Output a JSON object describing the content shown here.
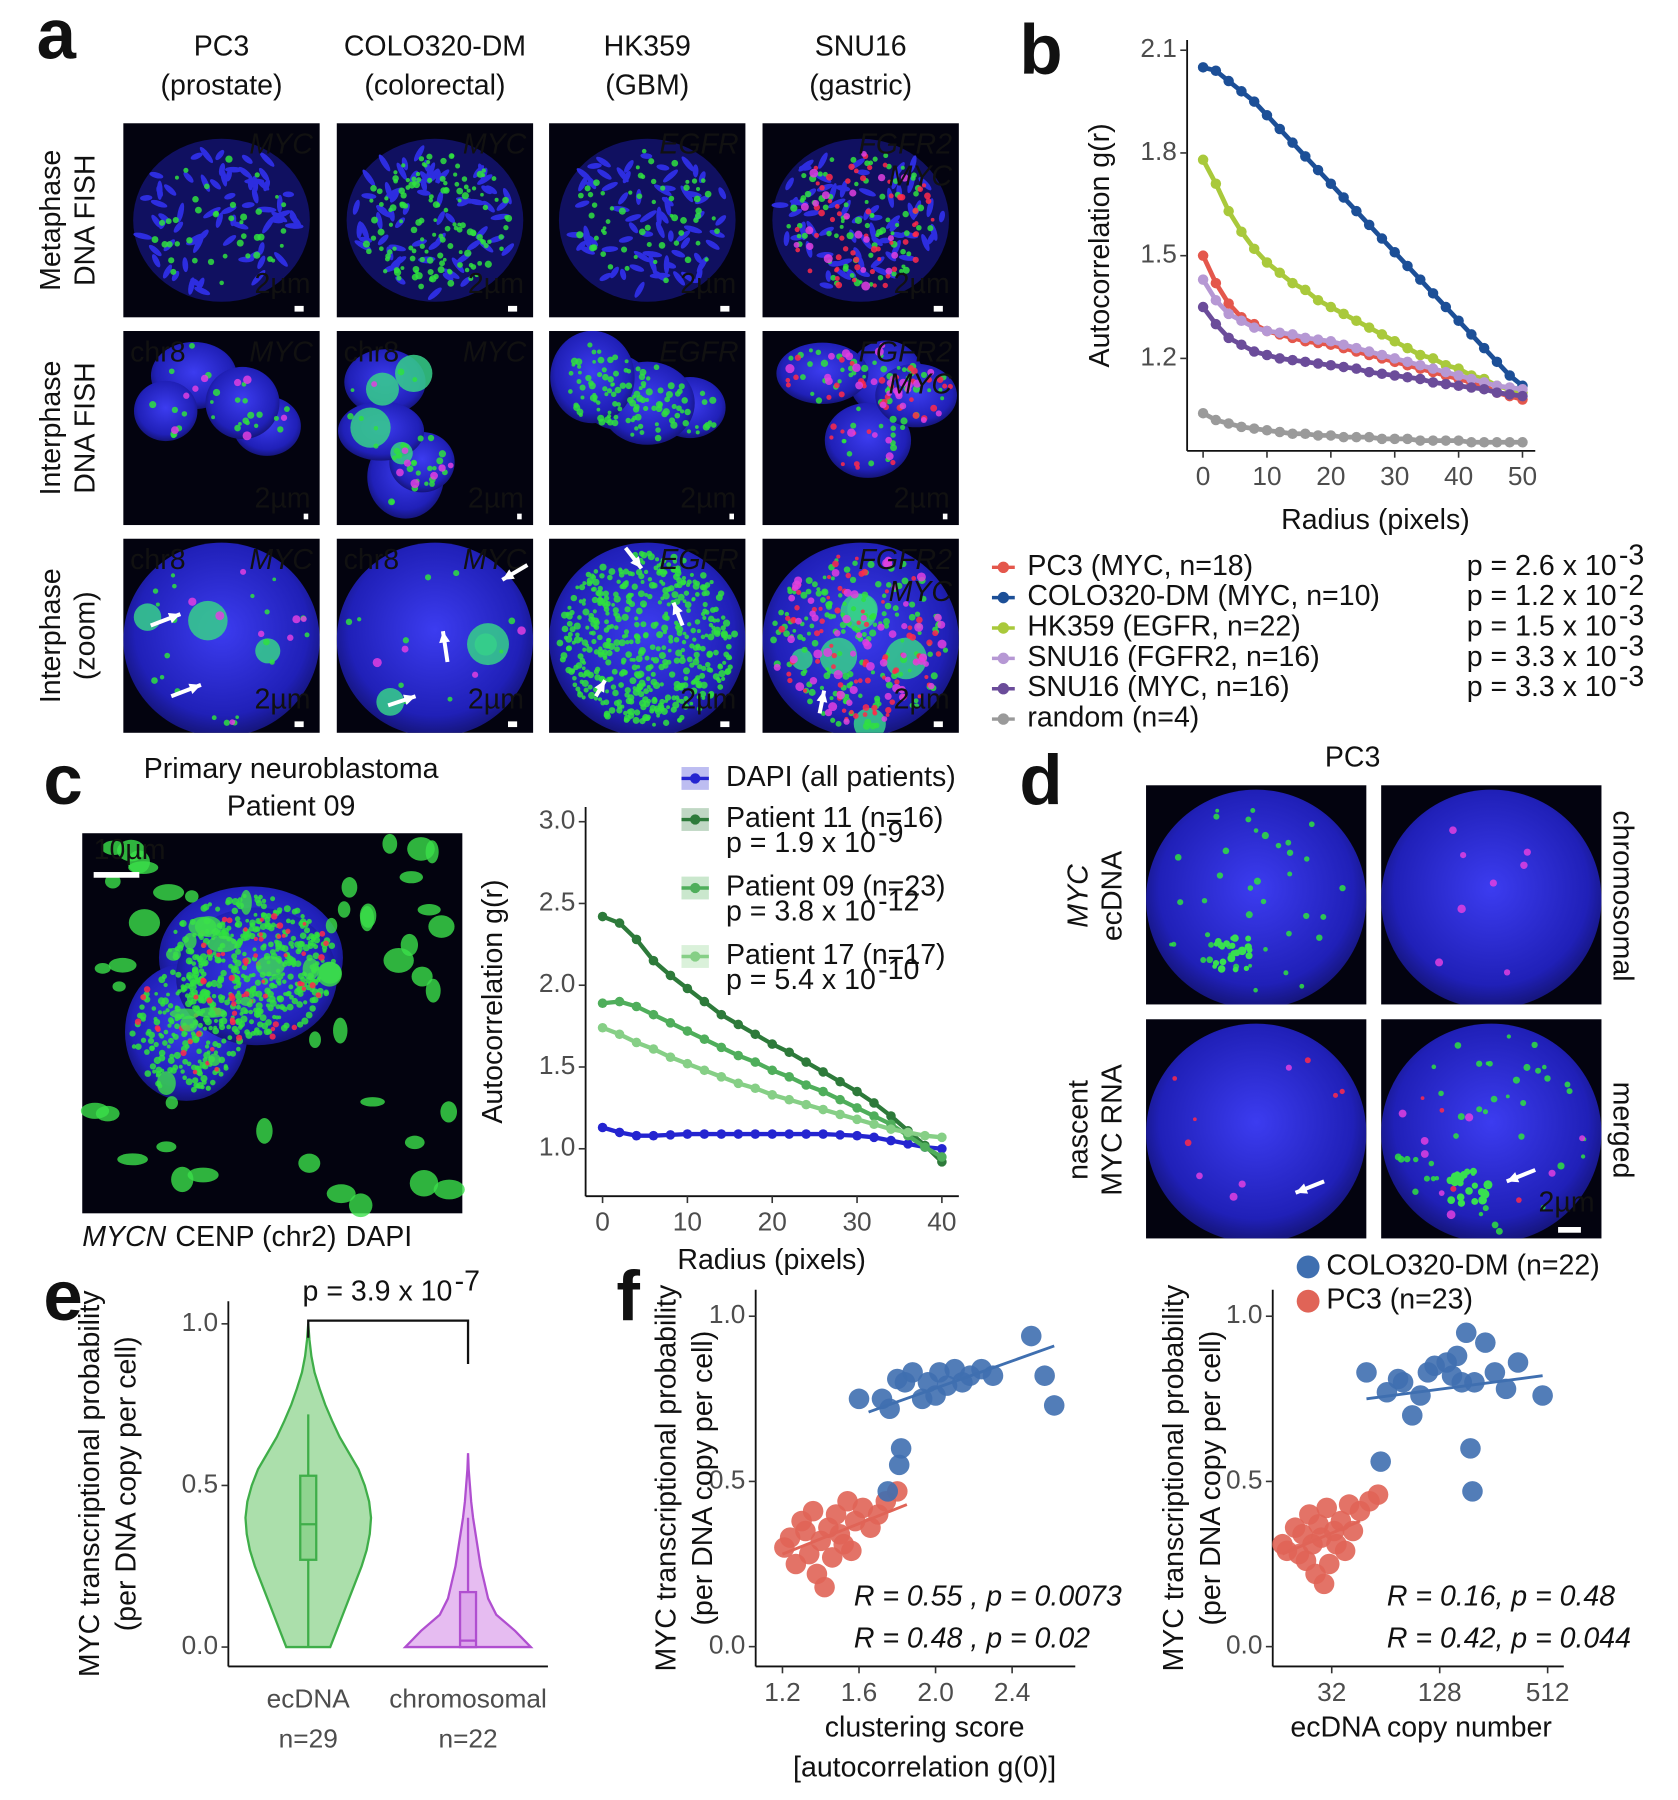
{
  "figure": {
    "panel_labels": [
      "a",
      "b",
      "c",
      "d",
      "e",
      "f"
    ],
    "panel_a": {
      "columns": [
        {
          "name": "PC3",
          "tissue": "(prostate)"
        },
        {
          "name": "COLO320-DM",
          "tissue": "(colorectal)"
        },
        {
          "name": "HK359",
          "tissue": "(GBM)"
        },
        {
          "name": "SNU16",
          "tissue": "(gastric)"
        }
      ],
      "rows": [
        [
          "Metaphase",
          "DNA FISH"
        ],
        [
          "Interphase",
          "DNA FISH"
        ],
        [
          "Interphase",
          "(zoom)"
        ]
      ],
      "images": [
        [
          {
            "gene": "MYC",
            "scale": "2µm"
          },
          {
            "gene": "MYC",
            "scale": "2µm"
          },
          {
            "gene": "EGFR",
            "scale": "2µm"
          },
          {
            "gene": "FGFR2",
            "gene2": "MYC",
            "scale": "2µm"
          }
        ],
        [
          {
            "chr": "chr8",
            "gene": "MYC",
            "scale": "2µm"
          },
          {
            "chr": "chr8",
            "gene": "MYC",
            "scale": "2µm"
          },
          {
            "gene": "EGFR",
            "scale": "2µm"
          },
          {
            "gene": "FGFR2",
            "gene2": "MYC",
            "scale": "2µm"
          }
        ],
        [
          {
            "chr": "chr8",
            "gene": "MYC",
            "scale": "2µm"
          },
          {
            "chr": "chr8",
            "gene": "MYC",
            "scale": "2µm"
          },
          {
            "gene": "EGFR",
            "scale": "2µm"
          },
          {
            "gene": "FGFR2",
            "gene2": "MYC",
            "scale": "2µm"
          }
        ]
      ]
    },
    "panel_c": {
      "title": [
        "Primary neuroblastoma",
        "Patient 09"
      ],
      "scale": "10µm",
      "caption": [
        {
          "text": "MYCN",
          "color": "#1f9e3c"
        },
        {
          "text": "CENP (chr2)",
          "color": "#e01b1b"
        },
        {
          "text": "DAPI",
          "color": "#1f1fd0"
        }
      ]
    },
    "panel_d": {
      "title": "PC3",
      "ecdna": [
        "MYC",
        "ecDNA"
      ],
      "chromosomal": "chromosomal",
      "rna": [
        "nascent",
        "MYC RNA"
      ],
      "merged": "merged",
      "scale": "2µm"
    }
  },
  "chart_data": [
    {
      "type": "line",
      "xlabel": "Radius (pixels)",
      "ylabel": "Autocorrelation g(r)",
      "x": [
        0,
        2,
        4,
        6,
        8,
        10,
        12,
        14,
        16,
        18,
        20,
        22,
        24,
        26,
        28,
        30,
        32,
        34,
        36,
        38,
        40,
        42,
        44,
        46,
        48,
        50
      ],
      "xlim": [
        -2.5,
        52
      ],
      "xticks": [
        0,
        10,
        20,
        30,
        40,
        50
      ],
      "ylim": [
        0.93,
        2.13
      ],
      "yticks": [
        1.2,
        1.5,
        1.8,
        2.1
      ],
      "series": [
        {
          "name": "PC3 (MYC, n=18)",
          "p": "p = 2.6 x 10",
          "p_exp": "-3",
          "color": "#e4574c",
          "values": [
            1.5,
            1.42,
            1.36,
            1.32,
            1.3,
            1.28,
            1.27,
            1.26,
            1.25,
            1.245,
            1.24,
            1.23,
            1.22,
            1.21,
            1.2,
            1.19,
            1.18,
            1.17,
            1.16,
            1.15,
            1.14,
            1.13,
            1.12,
            1.1,
            1.09,
            1.08
          ]
        },
        {
          "name": "COLO320-DM (MYC, n=10)",
          "p": "p = 1.2 x 10",
          "p_exp": "-2",
          "color": "#1c4f97",
          "values": [
            2.05,
            2.04,
            2.01,
            1.98,
            1.95,
            1.91,
            1.87,
            1.83,
            1.79,
            1.75,
            1.71,
            1.67,
            1.63,
            1.59,
            1.55,
            1.51,
            1.47,
            1.43,
            1.39,
            1.35,
            1.31,
            1.27,
            1.23,
            1.19,
            1.15,
            1.12
          ]
        },
        {
          "name": "HK359 (EGFR, n=22)",
          "p": "p = 1.5 x 10",
          "p_exp": "-3",
          "color": "#a9c93b",
          "values": [
            1.78,
            1.71,
            1.63,
            1.57,
            1.52,
            1.48,
            1.45,
            1.42,
            1.4,
            1.37,
            1.35,
            1.33,
            1.31,
            1.29,
            1.27,
            1.25,
            1.23,
            1.21,
            1.2,
            1.18,
            1.17,
            1.15,
            1.14,
            1.12,
            1.11,
            1.1
          ]
        },
        {
          "name": "SNU16 (FGFR2, n=16)",
          "p": "p = 3.3 x 10",
          "p_exp": "-3",
          "color": "#b698d4",
          "values": [
            1.43,
            1.37,
            1.33,
            1.31,
            1.29,
            1.28,
            1.275,
            1.27,
            1.26,
            1.255,
            1.25,
            1.24,
            1.23,
            1.22,
            1.21,
            1.2,
            1.19,
            1.18,
            1.17,
            1.16,
            1.15,
            1.14,
            1.13,
            1.12,
            1.115,
            1.11
          ]
        },
        {
          "name": "SNU16 (MYC, n=16)",
          "p": "p = 3.3 x 10",
          "p_exp": "-3",
          "color": "#6b4c9a",
          "values": [
            1.35,
            1.3,
            1.26,
            1.24,
            1.22,
            1.21,
            1.2,
            1.195,
            1.19,
            1.185,
            1.18,
            1.175,
            1.17,
            1.16,
            1.155,
            1.15,
            1.145,
            1.14,
            1.13,
            1.125,
            1.12,
            1.115,
            1.11,
            1.1,
            1.095,
            1.09
          ]
        },
        {
          "name": "random (n=4)",
          "color": "#9a9a9a",
          "values": [
            1.04,
            1.02,
            1.01,
            1.0,
            0.995,
            0.99,
            0.985,
            0.98,
            0.98,
            0.975,
            0.975,
            0.97,
            0.97,
            0.97,
            0.965,
            0.965,
            0.965,
            0.96,
            0.96,
            0.96,
            0.96,
            0.955,
            0.955,
            0.955,
            0.955,
            0.955
          ]
        }
      ]
    },
    {
      "type": "line",
      "xlabel": "Radius (pixels)",
      "ylabel": "Autocorrelation g(r)",
      "x": [
        0,
        2,
        4,
        6,
        8,
        10,
        12,
        14,
        16,
        18,
        20,
        22,
        24,
        26,
        28,
        30,
        32,
        34,
        36,
        38,
        40
      ],
      "xlim": [
        -2,
        42
      ],
      "xticks": [
        0,
        10,
        20,
        30,
        40
      ],
      "ylim": [
        0.71,
        3.09
      ],
      "yticks": [
        {
          "value": 1,
          "label": "1.0"
        },
        1.5,
        {
          "value": 2,
          "label": "2.0"
        },
        2.5,
        {
          "value": 3,
          "label": "3.0"
        }
      ],
      "series": [
        {
          "name": "DAPI (all patients)",
          "color": "#2424d0",
          "values": [
            1.13,
            1.1,
            1.08,
            1.08,
            1.085,
            1.09,
            1.09,
            1.09,
            1.09,
            1.09,
            1.09,
            1.09,
            1.09,
            1.09,
            1.085,
            1.08,
            1.07,
            1.05,
            1.03,
            1.01,
            1.0
          ]
        },
        {
          "name": "Patient 11 (n=16)",
          "p": "p = 1.9 x 10",
          "p_exp": "-9",
          "color": "#2d7a3a",
          "values": [
            2.42,
            2.38,
            2.28,
            2.15,
            2.06,
            1.98,
            1.9,
            1.82,
            1.76,
            1.7,
            1.64,
            1.59,
            1.53,
            1.47,
            1.41,
            1.35,
            1.28,
            1.2,
            1.11,
            1.02,
            0.92
          ]
        },
        {
          "name": "Patient 09 (n=23)",
          "p": "p = 3.8 x 10",
          "p_exp": "-12",
          "color": "#4fae5b",
          "values": [
            1.89,
            1.9,
            1.87,
            1.82,
            1.77,
            1.72,
            1.67,
            1.62,
            1.57,
            1.53,
            1.48,
            1.44,
            1.39,
            1.35,
            1.3,
            1.25,
            1.2,
            1.15,
            1.08,
            1.01,
            0.95
          ]
        },
        {
          "name": "Patient 17 (n=17)",
          "p": "p = 5.4 x 10",
          "p_exp": "-10",
          "color": "#86cf86",
          "values": [
            1.74,
            1.7,
            1.65,
            1.61,
            1.56,
            1.52,
            1.48,
            1.44,
            1.4,
            1.37,
            1.33,
            1.3,
            1.27,
            1.24,
            1.21,
            1.18,
            1.15,
            1.12,
            1.1,
            1.08,
            1.07
          ]
        }
      ]
    },
    {
      "type": "violin",
      "ylabel": [
        "MYC transcriptional probability",
        "(per DNA copy per cell)"
      ],
      "categories": [
        "ecDNA",
        "chromosomal"
      ],
      "n_labels": [
        "n=29",
        "n=22"
      ],
      "p": "p = 3.9 x 10",
      "p_exp": "-7",
      "ylim": [
        -0.06,
        1.07
      ],
      "yticks": [
        {
          "value": 0,
          "label": "0.0"
        },
        0.5,
        {
          "value": 1,
          "label": "1.0"
        }
      ],
      "density_y": [
        0,
        0.05,
        0.1,
        0.15,
        0.2,
        0.25,
        0.3,
        0.35,
        0.4,
        0.45,
        0.5,
        0.55,
        0.6,
        0.65,
        0.7,
        0.75,
        0.8,
        0.85,
        0.9,
        0.95,
        1.0
      ],
      "series": [
        {
          "color": "#3fae49",
          "fill": "#8fd48f",
          "density": [
            0.35,
            0.45,
            0.55,
            0.65,
            0.75,
            0.85,
            0.93,
            0.98,
            1.0,
            0.97,
            0.9,
            0.8,
            0.65,
            0.5,
            0.38,
            0.27,
            0.18,
            0.1,
            0.05,
            0.02,
            0
          ],
          "q1": 0.27,
          "median": 0.38,
          "q3": 0.53,
          "whisker_low": 0,
          "whisker_high": 0.72
        },
        {
          "color": "#b04fd0",
          "fill": "#dda6ec",
          "density": [
            1.0,
            0.75,
            0.45,
            0.32,
            0.26,
            0.2,
            0.16,
            0.12,
            0.08,
            0.05,
            0.03,
            0.01,
            0,
            null,
            null,
            null,
            null,
            null,
            null,
            null,
            null
          ],
          "q1": 0,
          "median": 0.02,
          "q3": 0.17,
          "whisker_low": 0,
          "whisker_high": 0.4
        }
      ]
    },
    {
      "type": "scatter",
      "xlabel": [
        "clustering score",
        "[autocorrelation g(0)]"
      ],
      "ylabel": [
        "MYC transcriptional probability",
        "(per DNA copy per cell)"
      ],
      "xlim": [
        1.06,
        2.73
      ],
      "xticks": [
        1.2,
        1.6,
        {
          "value": 2,
          "label": "2.0"
        },
        2.4
      ],
      "ylim": [
        -0.06,
        1.08
      ],
      "yticks": [
        {
          "value": 0,
          "label": "0.0"
        },
        0.5,
        {
          "value": 1,
          "label": "1.0"
        }
      ],
      "series": [
        {
          "color": "#3f6fb0",
          "stat": "R = 0.55 , p = 0.0073",
          "x": [
            1.6,
            1.72,
            1.75,
            1.76,
            1.8,
            1.81,
            1.82,
            1.84,
            1.88,
            1.93,
            1.96,
            2.0,
            2.02,
            2.06,
            2.1,
            2.14,
            2.18,
            2.24,
            2.3,
            2.5,
            2.57,
            2.62
          ],
          "values": [
            0.75,
            0.75,
            0.47,
            0.72,
            0.81,
            0.55,
            0.6,
            0.8,
            0.83,
            0.75,
            0.8,
            0.76,
            0.83,
            0.79,
            0.84,
            0.8,
            0.82,
            0.84,
            0.82,
            0.94,
            0.82,
            0.73
          ],
          "trend": {
            "x": [
              1.65,
              2.62
            ],
            "y": [
              0.71,
              0.91
            ]
          }
        },
        {
          "color": "#e06457",
          "stat": "R = 0.48 , p = 0.02",
          "x": [
            1.21,
            1.24,
            1.27,
            1.3,
            1.32,
            1.34,
            1.36,
            1.38,
            1.4,
            1.42,
            1.44,
            1.46,
            1.48,
            1.5,
            1.52,
            1.54,
            1.56,
            1.58,
            1.62,
            1.66,
            1.7,
            1.74,
            1.8
          ],
          "values": [
            0.3,
            0.33,
            0.25,
            0.38,
            0.35,
            0.28,
            0.41,
            0.22,
            0.32,
            0.18,
            0.36,
            0.27,
            0.4,
            0.34,
            0.31,
            0.44,
            0.29,
            0.38,
            0.42,
            0.36,
            0.4,
            0.44,
            0.47
          ],
          "trend": {
            "x": [
              1.2,
              1.85
            ],
            "y": [
              0.28,
              0.43
            ]
          }
        }
      ]
    },
    {
      "type": "scatter",
      "xlabel": [
        "ecDNA copy number"
      ],
      "ylabel": [
        "MYC transcriptional probability",
        "(per DNA copy per cell)"
      ],
      "xscale": "log",
      "xlim": [
        15,
        630
      ],
      "xticks": [
        32,
        128,
        512
      ],
      "ylim": [
        -0.06,
        1.08
      ],
      "yticks": [
        {
          "value": 0,
          "label": "0.0"
        },
        0.5,
        {
          "value": 1,
          "label": "1.0"
        }
      ],
      "series": [
        {
          "name": "COLO320-DM (n=22)",
          "color": "#3f6fb0",
          "stat": "R = 0.16, p = 0.48",
          "x": [
            50,
            60,
            65,
            75,
            80,
            90,
            100,
            110,
            120,
            140,
            150,
            160,
            170,
            180,
            190,
            195,
            200,
            230,
            260,
            300,
            350,
            480
          ],
          "values": [
            0.83,
            0.56,
            0.77,
            0.81,
            0.8,
            0.7,
            0.76,
            0.83,
            0.85,
            0.86,
            0.82,
            0.88,
            0.8,
            0.95,
            0.6,
            0.47,
            0.8,
            0.92,
            0.83,
            0.78,
            0.86,
            0.76
          ],
          "trend": {
            "x": [
              50,
              480
            ],
            "y": [
              0.75,
              0.82
            ]
          }
        },
        {
          "name": "PC3 (n=23)",
          "color": "#e06457",
          "stat": "R = 0.42, p = 0.044",
          "x": [
            17,
            18,
            20,
            21,
            22,
            23,
            24,
            25,
            26,
            27,
            28,
            29,
            30,
            31,
            33,
            34,
            36,
            38,
            40,
            42,
            46,
            52,
            58
          ],
          "values": [
            0.31,
            0.29,
            0.36,
            0.28,
            0.34,
            0.26,
            0.4,
            0.31,
            0.22,
            0.37,
            0.33,
            0.19,
            0.42,
            0.25,
            0.35,
            0.31,
            0.38,
            0.29,
            0.43,
            0.35,
            0.41,
            0.44,
            0.46
          ],
          "trend": {
            "x": [
              17,
              46
            ],
            "y": [
              0.28,
              0.38
            ]
          }
        }
      ]
    }
  ]
}
